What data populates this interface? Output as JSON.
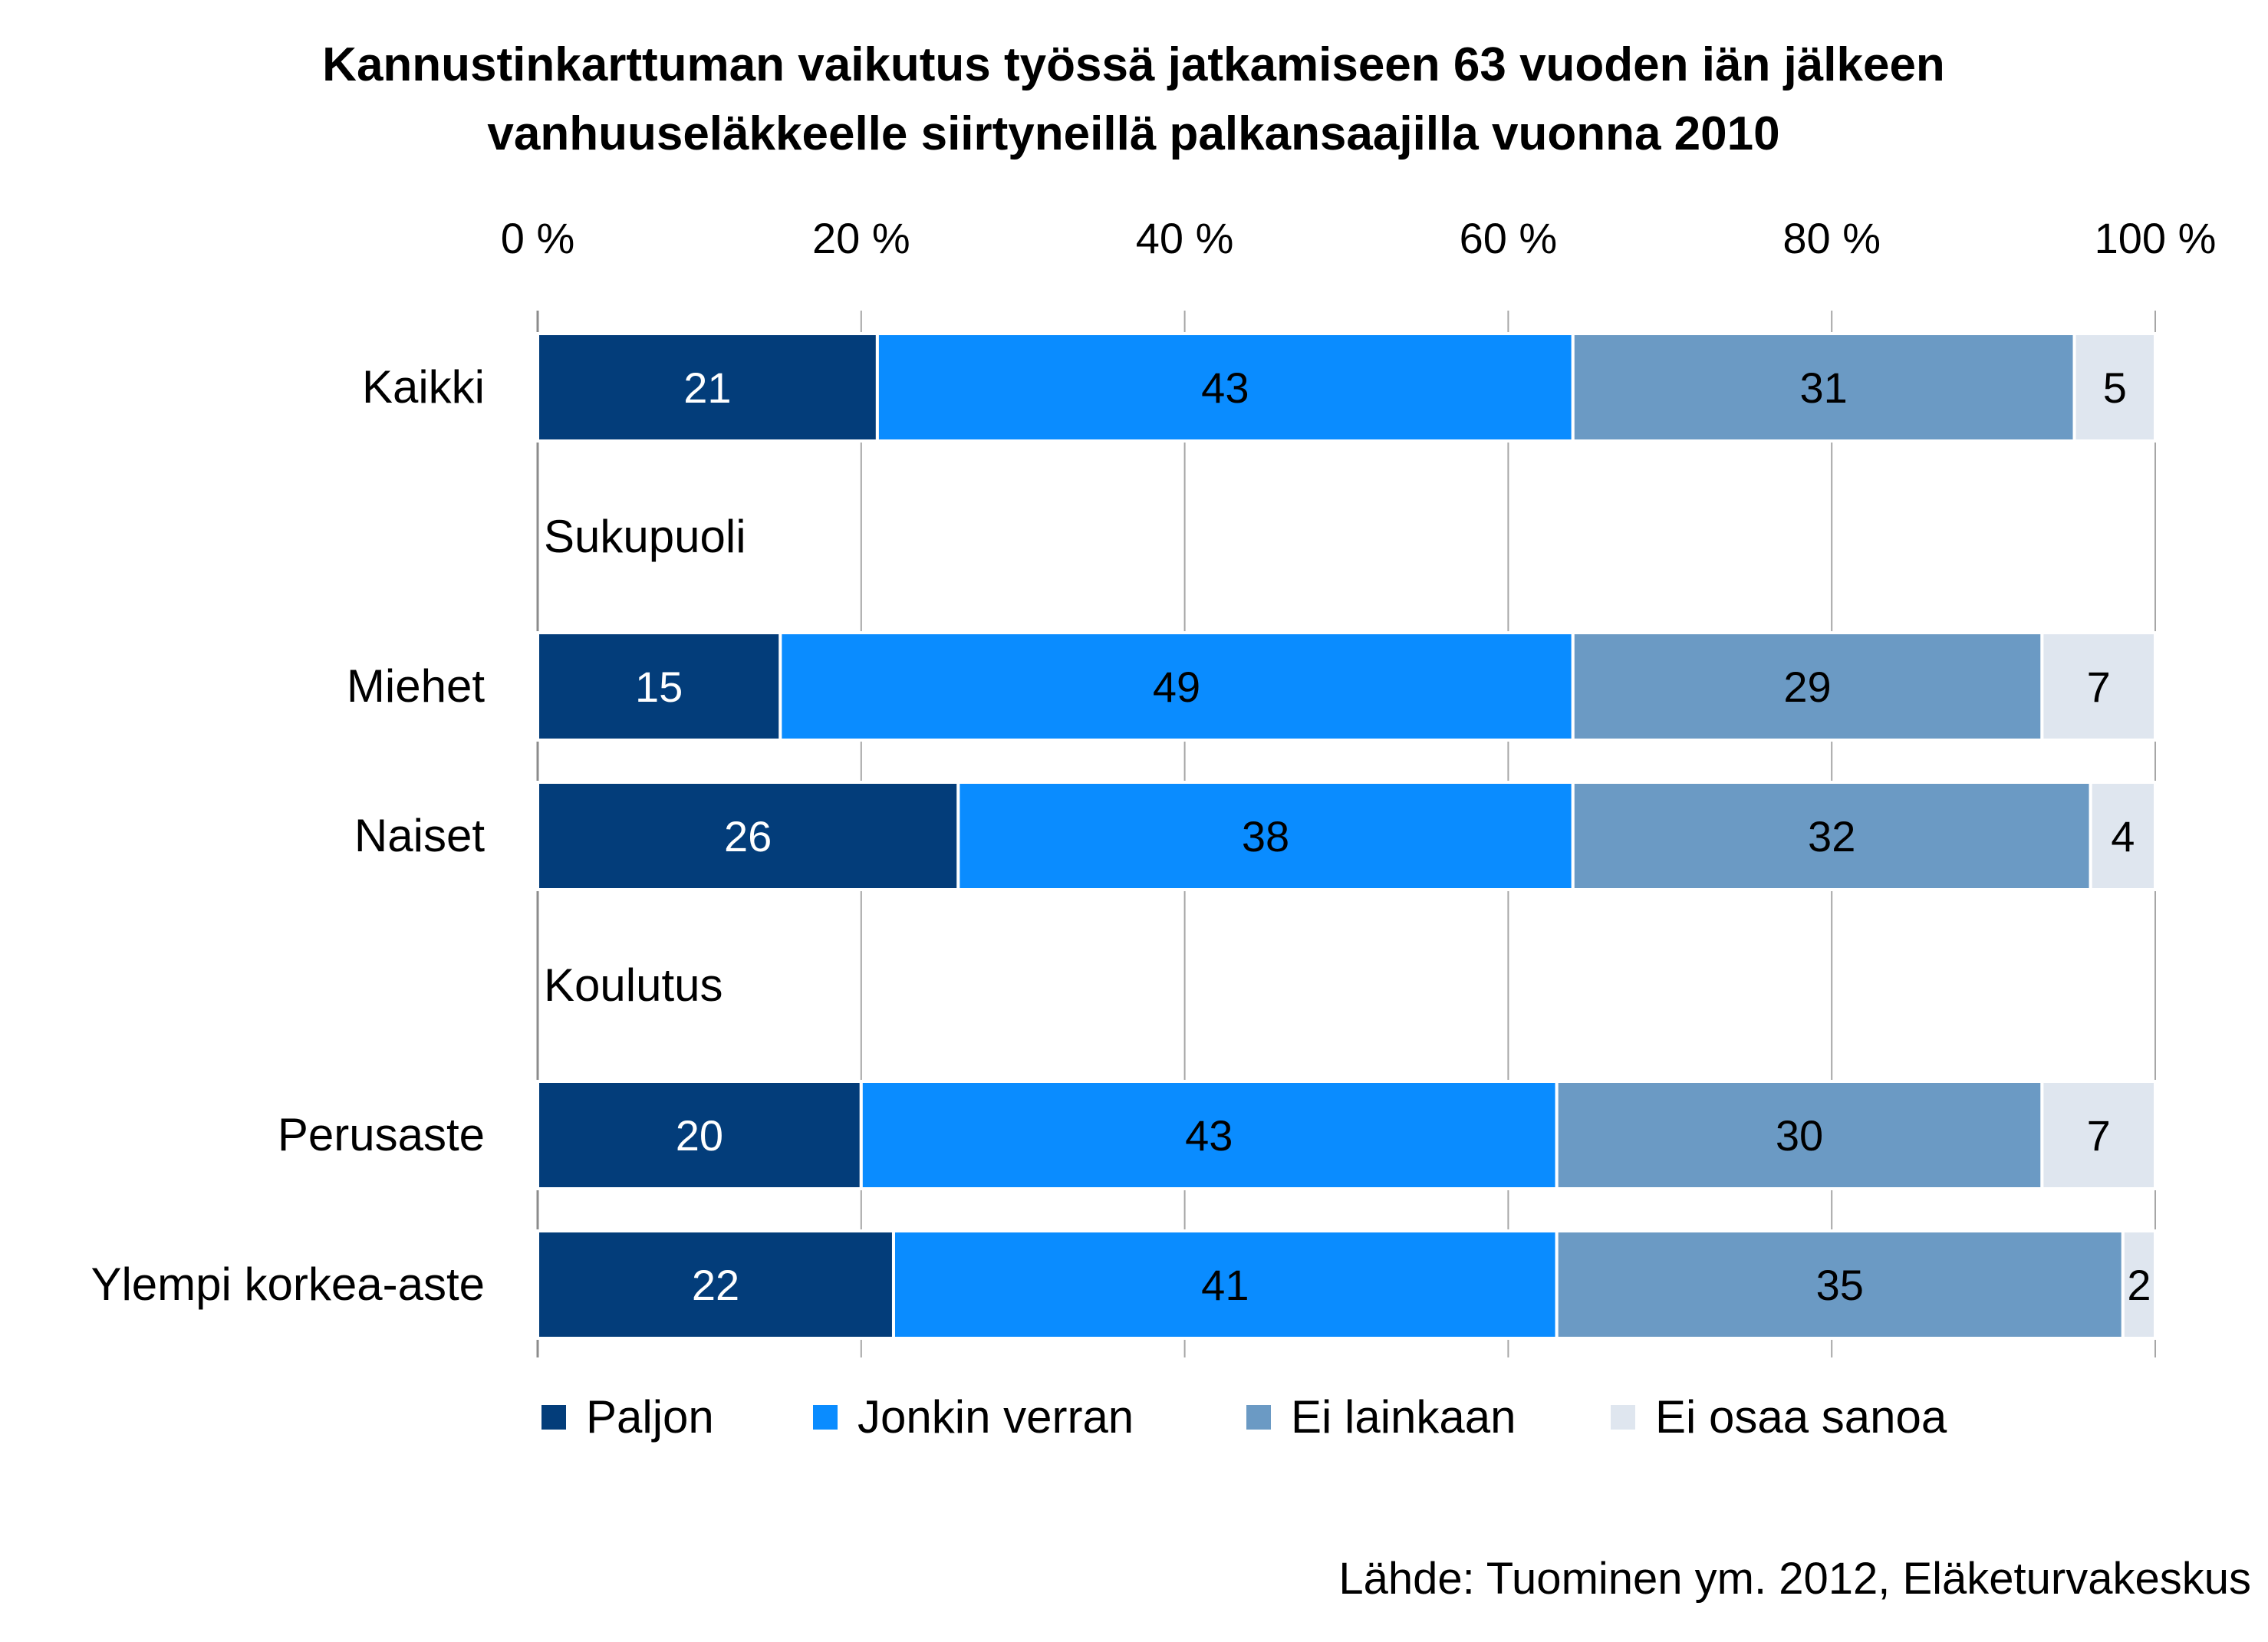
{
  "chart_data": {
    "type": "bar",
    "orientation": "horizontal",
    "stacked": "percent",
    "title_lines": [
      "Kannustinkarttuman vaikutus työssä jatkamiseen 63 vuoden iän jälkeen",
      "vanhuuseläkkeelle siirtyneillä palkansaajilla vuonna 2010"
    ],
    "x_ticks": [
      "0 %",
      "20 %",
      "40 %",
      "60 %",
      "80 %",
      "100 %"
    ],
    "xlim": [
      0,
      100
    ],
    "axis_position": "top",
    "grid": true,
    "legend_position": "bottom",
    "rows": [
      {
        "kind": "bar",
        "label": "Kaikki",
        "values": [
          21,
          43,
          31,
          5
        ]
      },
      {
        "kind": "group",
        "label": "Sukupuoli"
      },
      {
        "kind": "bar",
        "label": "Miehet",
        "values": [
          15,
          49,
          29,
          7
        ]
      },
      {
        "kind": "bar",
        "label": "Naiset",
        "values": [
          26,
          38,
          32,
          4
        ]
      },
      {
        "kind": "group",
        "label": "Koulutus"
      },
      {
        "kind": "bar",
        "label": "Perusaste",
        "values": [
          20,
          43,
          30,
          7
        ]
      },
      {
        "kind": "bar",
        "label": "Ylempi korkea-aste",
        "values": [
          22,
          41,
          35,
          2
        ]
      }
    ],
    "series": [
      {
        "name": "Paljon",
        "color": "#033d7a",
        "label_color": "#ffffff"
      },
      {
        "name": "Jonkin verran",
        "color": "#0a8cff",
        "label_color": "#000000"
      },
      {
        "name": "Ei lainkaan",
        "color": "#6b9ac4",
        "label_color": "#000000"
      },
      {
        "name": "Ei osaa sanoa",
        "color": "#dfe6ef",
        "label_color": "#000000"
      }
    ],
    "source": "Lähde: Tuominen ym. 2012, Eläketurvakeskus"
  }
}
